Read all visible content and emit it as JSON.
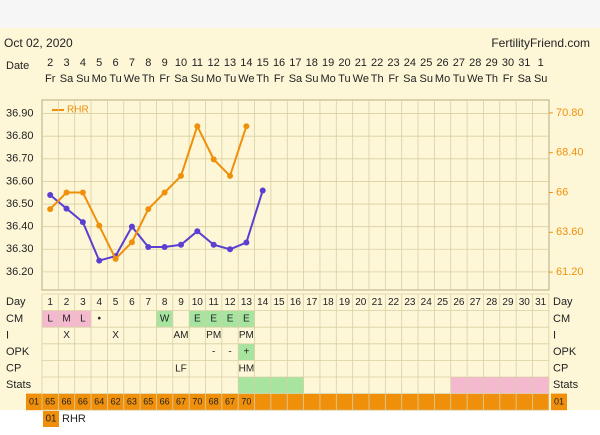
{
  "header": {
    "date": "Oct 02, 2020",
    "site": "FertilityFriend.com"
  },
  "chart_data": {
    "type": "line",
    "date_label": "Date",
    "categories": [
      "2",
      "3",
      "4",
      "5",
      "6",
      "7",
      "8",
      "9",
      "10",
      "11",
      "12",
      "13",
      "14",
      "15",
      "16",
      "17",
      "18",
      "19",
      "20",
      "21",
      "22",
      "23",
      "24",
      "25",
      "26",
      "27",
      "28",
      "29",
      "30",
      "31",
      "1"
    ],
    "weekdays": [
      "Fr",
      "Sa",
      "Su",
      "Mo",
      "Tu",
      "We",
      "Th",
      "Fr",
      "Sa",
      "Su",
      "Mo",
      "Tu",
      "We",
      "Th",
      "Fr",
      "Sa",
      "Su",
      "Mo",
      "Tu",
      "We",
      "Th",
      "Fr",
      "Sa",
      "Su",
      "Mo",
      "Tu",
      "We",
      "Th",
      "Fr",
      "Sa",
      "Su"
    ],
    "ylim": [
      36.12,
      36.96
    ],
    "yticks": [
      {
        "value": 36.9,
        "label": "36.90"
      },
      {
        "value": 36.8,
        "label": "36.80"
      },
      {
        "value": 36.7,
        "label": "36.70"
      },
      {
        "value": 36.6,
        "label": "36.60"
      },
      {
        "value": 36.5,
        "label": "36.50"
      },
      {
        "value": 36.4,
        "label": "36.40"
      },
      {
        "value": 36.3,
        "label": "36.30"
      },
      {
        "value": 36.2,
        "label": "36.20"
      }
    ],
    "y2lim": [
      60.12,
      71.58
    ],
    "y2ticks": [
      {
        "value": 70.8,
        "label": "70.80"
      },
      {
        "value": 68.4,
        "label": "68.40"
      },
      66,
      {
        "value": 63.6,
        "label": "63.60"
      },
      {
        "value": 61.2,
        "label": "61.20"
      }
    ],
    "grid": true,
    "series": [
      {
        "color": "#5a3fd0",
        "values": [
          36.54,
          36.48,
          36.42,
          36.25,
          36.27,
          36.4,
          36.31,
          36.31,
          36.32,
          36.38,
          36.32,
          36.3,
          36.33,
          36.56,
          null,
          null,
          null,
          null,
          null,
          null,
          null,
          null,
          null,
          null,
          null,
          null,
          null,
          null,
          null,
          null,
          null
        ]
      },
      {
        "name": "RHR",
        "color": "#f0900a",
        "axis": "y2",
        "values": [
          65,
          66,
          66,
          64,
          62,
          63,
          65,
          66,
          67,
          70,
          68,
          67,
          70,
          null,
          null,
          null,
          null,
          null,
          null,
          null,
          null,
          null,
          null,
          null,
          null,
          null,
          null,
          null,
          null,
          null,
          null
        ]
      }
    ]
  },
  "table": {
    "rows": [
      {
        "label": "Day",
        "label_right": "Day",
        "cells": [
          1,
          2,
          3,
          4,
          5,
          6,
          7,
          8,
          9,
          10,
          11,
          12,
          13,
          14,
          15,
          16,
          17,
          18,
          19,
          20,
          21,
          22,
          23,
          24,
          25,
          26,
          27,
          28,
          29,
          30,
          31
        ]
      },
      {
        "label": "CM",
        "label_right": "CM",
        "cells": [
          "L",
          "M",
          "L",
          "•",
          null,
          null,
          null,
          "W",
          null,
          "E",
          "E",
          "E",
          "E",
          null,
          null,
          null,
          null,
          null,
          null,
          null,
          null,
          null,
          null,
          null,
          null,
          null,
          null,
          null,
          null,
          null,
          null
        ],
        "fills": [
          "#f4b8cf",
          "#f4b8cf",
          "#f4b8cf",
          null,
          null,
          null,
          null,
          "#a6e4a0",
          null,
          "#a6e4a0",
          "#a6e4a0",
          "#a6e4a0",
          "#a6e4a0",
          null,
          null,
          null,
          null,
          null,
          null,
          null,
          null,
          null,
          null,
          null,
          null,
          null,
          null,
          null,
          null,
          null,
          null
        ]
      },
      {
        "label": "I",
        "label_right": "I",
        "cells": [
          null,
          "X",
          null,
          null,
          "X",
          null,
          null,
          null,
          "AM",
          null,
          "PM",
          null,
          "PM",
          null,
          null,
          null,
          null,
          null,
          null,
          null,
          null,
          null,
          null,
          null,
          null,
          null,
          null,
          null,
          null,
          null,
          null
        ]
      },
      {
        "label": "OPK",
        "label_right": "OPK",
        "cells": [
          null,
          null,
          null,
          null,
          null,
          null,
          null,
          null,
          null,
          null,
          "-",
          "-",
          "+",
          null,
          null,
          null,
          null,
          null,
          null,
          null,
          null,
          null,
          null,
          null,
          null,
          null,
          null,
          null,
          null,
          null,
          null
        ],
        "fills": [
          null,
          null,
          null,
          null,
          null,
          null,
          null,
          null,
          null,
          null,
          null,
          null,
          "#a6e4a0",
          null,
          null,
          null,
          null,
          null,
          null,
          null,
          null,
          null,
          null,
          null,
          null,
          null,
          null,
          null,
          null,
          null,
          null
        ]
      },
      {
        "label": "CP",
        "label_right": "CP",
        "cells": [
          null,
          null,
          null,
          null,
          null,
          null,
          null,
          null,
          "LF",
          null,
          null,
          null,
          "HM",
          null,
          null,
          null,
          null,
          null,
          null,
          null,
          null,
          null,
          null,
          null,
          null,
          null,
          null,
          null,
          null,
          null,
          null
        ]
      },
      {
        "label": "Stats",
        "label_right": "Stats",
        "fills": [
          null,
          null,
          null,
          null,
          null,
          null,
          null,
          null,
          null,
          null,
          null,
          null,
          "#a6e4a0",
          "#a6e4a0",
          "#a6e4a0",
          "#a6e4a0",
          null,
          null,
          null,
          null,
          null,
          null,
          null,
          null,
          null,
          "#f4b8cf",
          "#f4b8cf",
          "#f4b8cf",
          "#f4b8cf",
          "#f4b8cf",
          "#f4b8cf"
        ]
      }
    ],
    "rhr_row_label": "01",
    "rhr_fill": "#f0900a"
  }
}
